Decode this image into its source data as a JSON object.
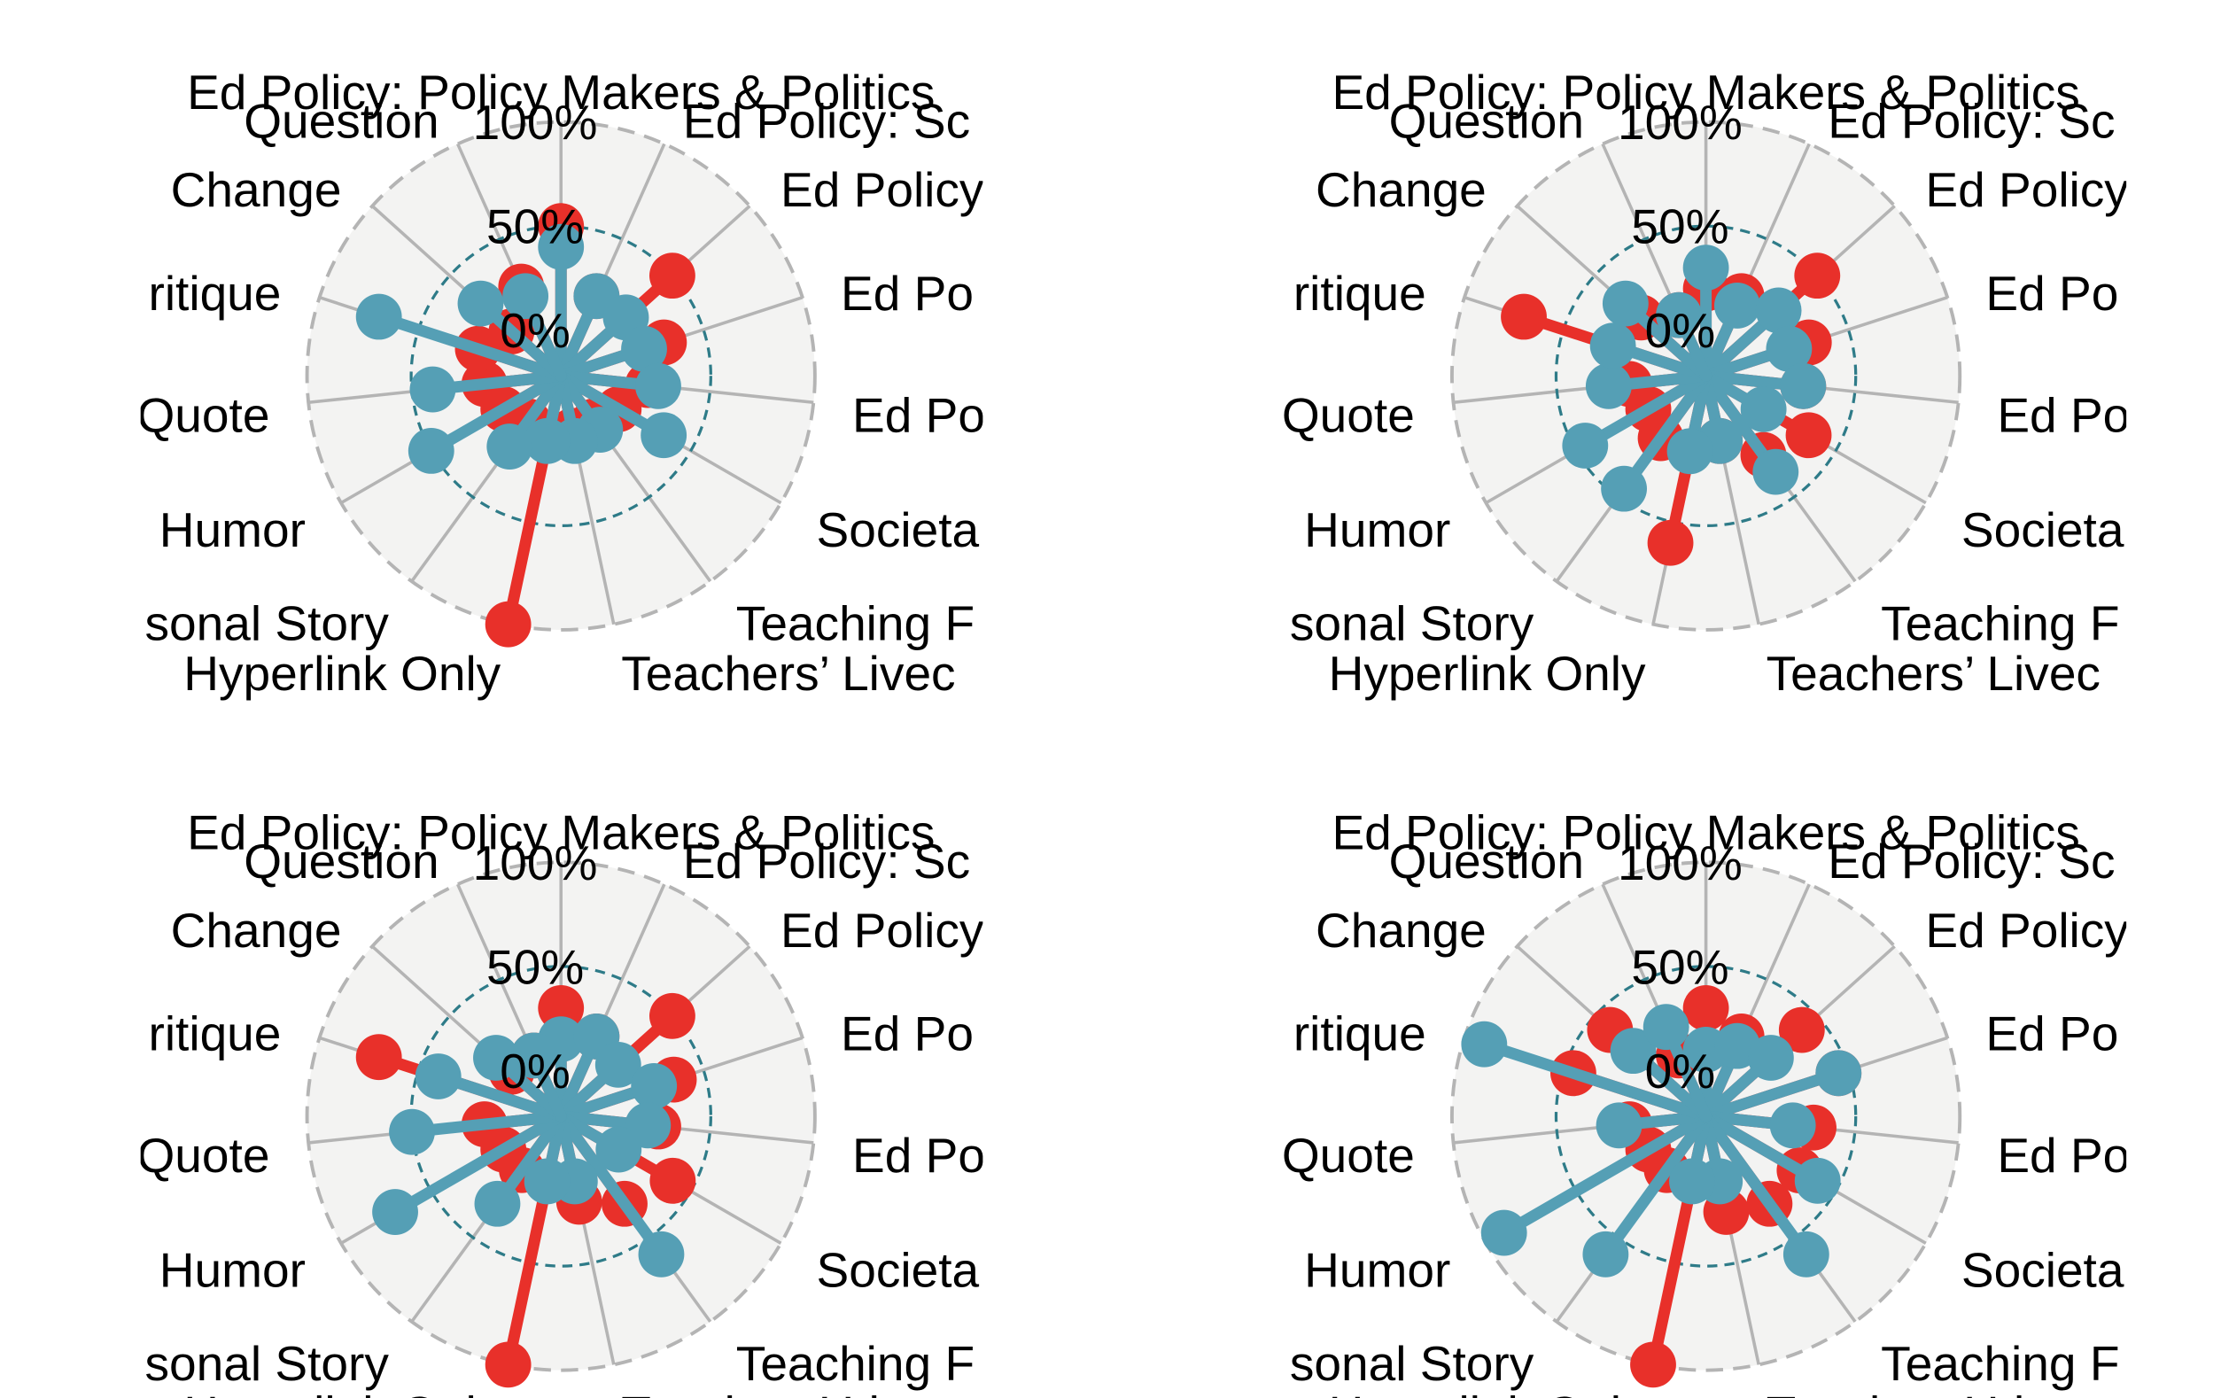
{
  "colors": {
    "series_red": "#E8302A",
    "series_blue": "#559FB5",
    "panel_fill": "#F3F3F2",
    "spoke": "#B4B4B4",
    "outer_ring": "#B4B4B4",
    "mid_ring": "#2E7B88"
  },
  "chart_data": [
    {
      "type": "radar",
      "categories": [
        "Ed Policy: Policy Makers & Politics",
        "Ed Policy: Sc",
        "Ed Policy",
        "Ed Po",
        "Ed Po",
        "Societa",
        "Teaching F",
        "Teachers’ Livec",
        "Hyperlink Only",
        "sonal Story",
        "Humor",
        "Quote",
        "ritique",
        "Change",
        "Question"
      ],
      "radial_ticks": [
        "0%",
        "50%",
        "100%"
      ],
      "ylim": [
        0,
        100
      ],
      "series": [
        {
          "color": "#E8302A",
          "values": [
            50,
            20,
            50,
            30,
            20,
            10,
            5,
            5,
            100,
            5,
            10,
            15,
            20,
            10,
            25
          ]
        },
        {
          "color": "#559FB5",
          "values": [
            40,
            20,
            20,
            20,
            25,
            35,
            10,
            10,
            10,
            20,
            50,
            40,
            70,
            30,
            20
          ]
        }
      ]
    },
    {
      "type": "radar",
      "categories": [
        "Ed Policy: Policy Makers & Politics",
        "Ed Policy: Sc",
        "Ed Policy",
        "Ed Po",
        "Ed Po",
        "Societa",
        "Teaching F",
        "Teachers’ Livec",
        "Hyperlink Only",
        "sonal Story",
        "Humor",
        "Quote",
        "ritique",
        "Change",
        "Question"
      ],
      "radial_ticks": [
        "0%",
        "50%",
        "100%"
      ],
      "ylim": [
        0,
        100
      ],
      "series": [
        {
          "color": "#E8302A",
          "values": [
            20,
            20,
            50,
            30,
            25,
            35,
            25,
            10,
            60,
            15,
            10,
            15,
            70,
            20,
            10
          ]
        },
        {
          "color": "#559FB5",
          "values": [
            30,
            15,
            25,
            20,
            25,
            10,
            35,
            10,
            15,
            45,
            45,
            25,
            25,
            30,
            10
          ]
        }
      ]
    },
    {
      "type": "radar",
      "categories": [
        "Ed Policy: Policy Makers & Politics",
        "Ed Policy: Sc",
        "Ed Policy",
        "Ed Po",
        "Ed Po",
        "Societa",
        "Teaching F",
        "Teachers’ Livec",
        "Hyperlink Only",
        "sonal Story",
        "Humor",
        "Quote",
        "ritique",
        "Change",
        "Question"
      ],
      "radial_ticks": [
        "0%",
        "50%",
        "100%"
      ],
      "ylim": [
        0,
        100
      ],
      "series": [
        {
          "color": "#E8302A",
          "values": [
            30,
            20,
            50,
            35,
            25,
            40,
            30,
            20,
            100,
            10,
            10,
            15,
            70,
            10,
            10
          ]
        },
        {
          "color": "#559FB5",
          "values": [
            15,
            20,
            15,
            25,
            20,
            10,
            60,
            10,
            10,
            30,
            70,
            50,
            40,
            20,
            10
          ]
        }
      ]
    },
    {
      "type": "radar",
      "categories": [
        "Ed Policy: Policy Makers & Politics",
        "Ed Policy: Sc",
        "Ed Policy",
        "Ed Po",
        "Ed Po",
        "Societa",
        "Teaching F",
        "Teachers’ Livec",
        "Hyperlink Only",
        "sonal Story",
        "Humor",
        "Quote",
        "ritique",
        "Change",
        "Question"
      ],
      "radial_ticks": [
        "0%",
        "50%",
        "100%"
      ],
      "ylim": [
        0,
        100
      ],
      "series": [
        {
          "color": "#E8302A",
          "values": [
            30,
            20,
            40,
            45,
            30,
            30,
            30,
            25,
            100,
            10,
            10,
            15,
            45,
            40,
            10
          ]
        },
        {
          "color": "#559FB5",
          "values": [
            10,
            15,
            20,
            45,
            20,
            40,
            60,
            10,
            10,
            60,
            90,
            20,
            90,
            25,
            25
          ]
        }
      ]
    }
  ]
}
